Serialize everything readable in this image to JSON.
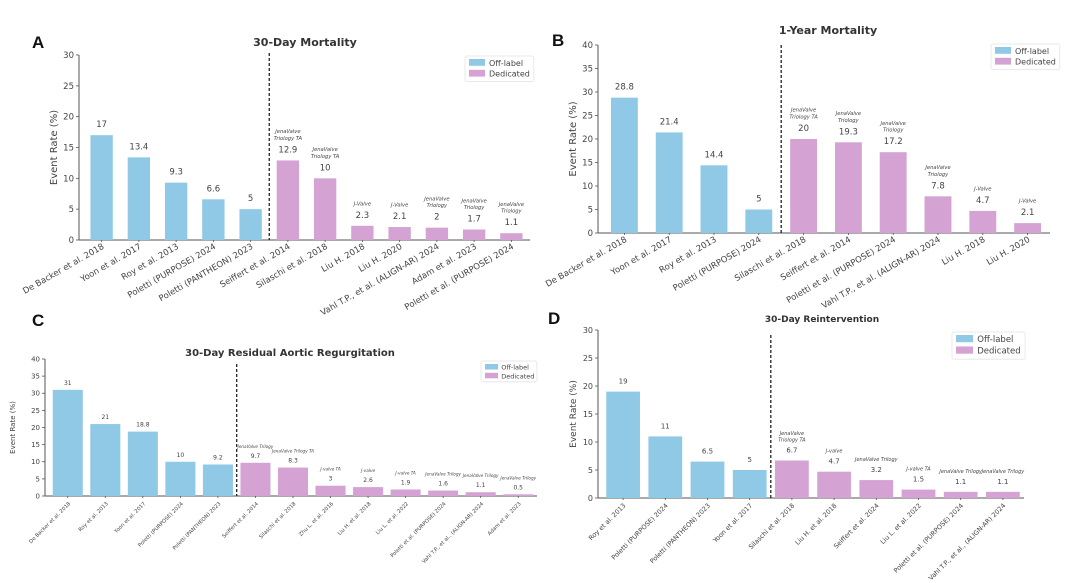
{
  "colors": {
    "off_label": "#8fc9e6",
    "dedicated": "#d4a3d4",
    "axis": "#555555"
  },
  "chart_data": [
    {
      "panel": "A",
      "type": "bar",
      "title": "30-Day Mortality",
      "xlabel": "",
      "ylabel": "Event Rate (%)",
      "ylim": [
        0,
        30
      ],
      "yticks": [
        0,
        5,
        10,
        15,
        20,
        25,
        30
      ],
      "legend": {
        "position": "top-right",
        "entries": [
          "Off-label",
          "Dedicated"
        ]
      },
      "grid": false,
      "divider_after_index": 4,
      "categories": [
        "De Backer et al. 2018",
        "Yoon et al. 2017",
        "Roy et al. 2013",
        "Poletti (PURPOSE) 2024",
        "Poletti (PANTHEON) 2023",
        "Seiffert et al. 2014",
        "Silaschi et al. 2018",
        "Liu H. 2018",
        "Liu H. 2020",
        "Vahl T.P., et al. (ALIGN-AR) 2024",
        "Adam et al. 2023",
        "Poletti et al. (PURPOSE) 2024"
      ],
      "values": [
        17,
        13.4,
        9.3,
        6.6,
        5,
        12.9,
        10,
        2.3,
        2.1,
        2,
        1.7,
        1.1
      ],
      "value_labels": [
        "17",
        "13.4",
        "9.3",
        "6.6",
        "5",
        "12.9",
        "10",
        "2.3",
        "2.1",
        "2",
        "1.7",
        "1.1"
      ],
      "groups": [
        "Off-label",
        "Off-label",
        "Off-label",
        "Off-label",
        "Off-label",
        "Dedicated",
        "Dedicated",
        "Dedicated",
        "Dedicated",
        "Dedicated",
        "Dedicated",
        "Dedicated"
      ],
      "devices": [
        "",
        "",
        "",
        "",
        "",
        "JenaValve\nTriology TA",
        "JenaValve\nTriology TA",
        "J-Valve",
        "J-Valve",
        "JenaValve\nTriology",
        "JenaValve\nTriology",
        "JenaValve\nTriology"
      ]
    },
    {
      "panel": "B",
      "type": "bar",
      "title": "1-Year Mortality",
      "xlabel": "",
      "ylabel": "Event Rate (%)",
      "ylim": [
        0,
        40
      ],
      "yticks": [
        0,
        5,
        10,
        15,
        20,
        25,
        30,
        35,
        40
      ],
      "legend": {
        "position": "top-right",
        "entries": [
          "Off-label",
          "Dedicated"
        ]
      },
      "grid": false,
      "divider_after_index": 3,
      "categories": [
        "De Backer et al. 2018",
        "Yoon et al. 2017",
        "Roy et al. 2013",
        "Poletti (PURPOSE) 2024",
        "Silaschi et al. 2018",
        "Seiffert et al. 2014",
        "Poletti et al. (PURPOSE) 2024",
        "Vahl T.P., et al. (ALIGN-AR) 2024",
        "Liu H. 2018",
        "Liu H. 2020"
      ],
      "values": [
        28.8,
        21.4,
        14.4,
        5,
        20,
        19.3,
        17.2,
        7.8,
        4.7,
        2.1
      ],
      "value_labels": [
        "28.8",
        "21.4",
        "14.4",
        "5",
        "20",
        "19.3",
        "17.2",
        "7.8",
        "4.7",
        "2.1"
      ],
      "groups": [
        "Off-label",
        "Off-label",
        "Off-label",
        "Off-label",
        "Dedicated",
        "Dedicated",
        "Dedicated",
        "Dedicated",
        "Dedicated",
        "Dedicated"
      ],
      "devices": [
        "",
        "",
        "",
        "",
        "JenaValve\nTriology TA",
        "JenaValve\nTriology",
        "JenaValve\nTriology",
        "JenaValve\nTriology",
        "J-Valve",
        "J-Valve"
      ]
    },
    {
      "panel": "C",
      "type": "bar",
      "title": "30-Day Residual Aortic Regurgitation",
      "xlabel": "",
      "ylabel": "Event Rate (%)",
      "ylim": [
        0,
        40
      ],
      "yticks": [
        0,
        5,
        10,
        15,
        20,
        25,
        30,
        35,
        40
      ],
      "legend": {
        "position": "top-right",
        "entries": [
          "Off-label",
          "Dedicated"
        ]
      },
      "grid": false,
      "divider_after_index": 4,
      "categories": [
        "De Backer et al. 2018",
        "Roy et al. 2013",
        "Yoon et al. 2017",
        "Poletti (PURPOSE) 2024",
        "Poletti (PANTHEON) 2023",
        "Seiffert et al. 2014",
        "Silaschi et al. 2018",
        "Zhu L. et al. 2016",
        "Liu H. et al. 2018",
        "Liu L. et al. 2022",
        "Poletti et al. (PURPOSE) 2024",
        "Vahl T.P., et al., (ALIGN-AR) 2024",
        "Adam et al. 2023"
      ],
      "values": [
        31,
        21,
        18.8,
        10,
        9.2,
        9.7,
        8.3,
        3,
        2.6,
        1.9,
        1.6,
        1.1,
        0.5
      ],
      "value_labels": [
        "31",
        "21",
        "18.8",
        "10",
        "9.2",
        "9.7",
        "8.3",
        "3",
        "2.6",
        "1.9",
        "1.6",
        "1.1",
        "0.5"
      ],
      "groups": [
        "Off-label",
        "Off-label",
        "Off-label",
        "Off-label",
        "Off-label",
        "Dedicated",
        "Dedicated",
        "Dedicated",
        "Dedicated",
        "Dedicated",
        "Dedicated",
        "Dedicated",
        "Dedicated"
      ],
      "devices": [
        "",
        "",
        "",
        "",
        "",
        "JenaValve Trilogy",
        "JenaValve Trilogy TA",
        "J-valve TA",
        "J-valve",
        "J-valve TA",
        "JenaValve Trilogy",
        "JenaValve Trilogy",
        "JenaValve Trilogy"
      ]
    },
    {
      "panel": "D",
      "type": "bar",
      "title": "30-Day Reintervention",
      "xlabel": "",
      "ylabel": "Event Rate (%)",
      "ylim": [
        0,
        30
      ],
      "yticks": [
        0,
        5,
        10,
        15,
        20,
        25,
        30
      ],
      "legend": {
        "position": "top-right",
        "entries": [
          "Off-label",
          "Dedicated"
        ]
      },
      "grid": false,
      "divider_after_index": 3,
      "categories": [
        "Roy et al. 2013",
        "Poletti (PURPOSE) 2024",
        "Poletti (PANTHEON) 2023",
        "Yoon et al. 2017",
        "Silaschi et al. 2018",
        "Liu H. et al. 2018",
        "Seiffert et al. 2024",
        "Liu L. et al. 2022",
        "Poletti et al. (PURPOSE) 2024",
        "Vahl T.P., et al., (ALIGN-AR) 2024"
      ],
      "values": [
        19,
        11,
        6.5,
        5,
        6.7,
        4.7,
        3.2,
        1.5,
        1.1,
        1.1
      ],
      "value_labels": [
        "19",
        "11",
        "6.5",
        "5",
        "6.7",
        "4.7",
        "3.2",
        "1.5",
        "1.1",
        "1.1"
      ],
      "groups": [
        "Off-label",
        "Off-label",
        "Off-label",
        "Off-label",
        "Dedicated",
        "Dedicated",
        "Dedicated",
        "Dedicated",
        "Dedicated",
        "Dedicated"
      ],
      "devices": [
        "",
        "",
        "",
        "",
        "JenaValve\nTriology TA",
        "J-valve",
        "JenaValve Trilogy",
        "J-valve TA",
        "JenaValve Trilogy",
        "JenaValve Trilogy"
      ]
    }
  ]
}
